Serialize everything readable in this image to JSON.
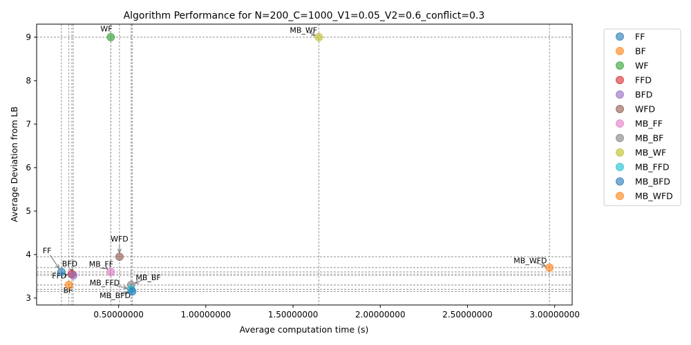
{
  "chart_data": {
    "type": "scatter",
    "title": "Algorithm Performance for N=200_C=1000_V1=0.05_V2=0.6_conflict=0.3",
    "xlabel": "Average computation time (s)",
    "ylabel": "Average Deviation from LB",
    "xlim": [
      0.03,
      3.1
    ],
    "ylim": [
      2.84,
      9.3
    ],
    "x_ticks": [
      0.5,
      1.0,
      1.5,
      2.0,
      2.5,
      3.0
    ],
    "x_tick_labels": [
      "0.50000000",
      "1.00000000",
      "1.50000000",
      "2.00000000",
      "2.50000000",
      "3.00000000"
    ],
    "y_ticks": [
      3,
      4,
      5,
      6,
      7,
      8,
      9
    ],
    "y_tick_labels": [
      "3",
      "4",
      "5",
      "6",
      "7",
      "8",
      "9"
    ],
    "grid": "dashed reference lines at each point",
    "legend_position": "outside-right",
    "series": [
      {
        "name": "FF",
        "x": 0.172,
        "y": 3.6,
        "color": "#1f77b4"
      },
      {
        "name": "BF",
        "x": 0.215,
        "y": 3.3,
        "color": "#ff7f0e"
      },
      {
        "name": "WF",
        "x": 0.455,
        "y": 9.0,
        "color": "#2ca02c"
      },
      {
        "name": "FFD",
        "x": 0.232,
        "y": 3.55,
        "color": "#d62728"
      },
      {
        "name": "BFD",
        "x": 0.24,
        "y": 3.52,
        "color": "#9467bd"
      },
      {
        "name": "WFD",
        "x": 0.505,
        "y": 3.95,
        "color": "#8c564b"
      },
      {
        "name": "MB_FF",
        "x": 0.455,
        "y": 3.6,
        "color": "#e377c2"
      },
      {
        "name": "MB_BF",
        "x": 0.572,
        "y": 3.3,
        "color": "#7f7f7f"
      },
      {
        "name": "MB_WF",
        "x": 1.648,
        "y": 9.0,
        "color": "#bcbd22"
      },
      {
        "name": "MB_FFD",
        "x": 0.572,
        "y": 3.2,
        "color": "#17becf"
      },
      {
        "name": "MB_BFD",
        "x": 0.578,
        "y": 3.15,
        "color": "#1f77b4"
      },
      {
        "name": "MB_WFD",
        "x": 2.97,
        "y": 3.7,
        "color": "#ff7f0e"
      }
    ],
    "annotations": [
      {
        "text": "FF",
        "x": 0.09,
        "y": 4.03,
        "target": "FF"
      },
      {
        "text": "BFD",
        "x": 0.22,
        "y": 3.73,
        "target": "BFD"
      },
      {
        "text": "FFD",
        "x": 0.16,
        "y": 3.45,
        "target": "FFD"
      },
      {
        "text": "BF",
        "x": 0.21,
        "y": 3.12,
        "target": "BF"
      },
      {
        "text": "WF",
        "x": 0.43,
        "y": 9.13,
        "target": "WF"
      },
      {
        "text": "WFD",
        "x": 0.505,
        "y": 4.3,
        "target": "WFD"
      },
      {
        "text": "MB_FF",
        "x": 0.4,
        "y": 3.72,
        "target": "MB_FF"
      },
      {
        "text": "MB_BF",
        "x": 0.67,
        "y": 3.41,
        "target": "MB_BF"
      },
      {
        "text": "MB_FFD",
        "x": 0.42,
        "y": 3.29,
        "target": "MB_FFD"
      },
      {
        "text": "MB_BFD",
        "x": 0.48,
        "y": 3.0,
        "target": "MB_BFD"
      },
      {
        "text": "MB_WF",
        "x": 1.56,
        "y": 9.1,
        "target": "MB_WF"
      },
      {
        "text": "MB_WFD",
        "x": 2.86,
        "y": 3.8,
        "target": "MB_WFD"
      }
    ]
  }
}
